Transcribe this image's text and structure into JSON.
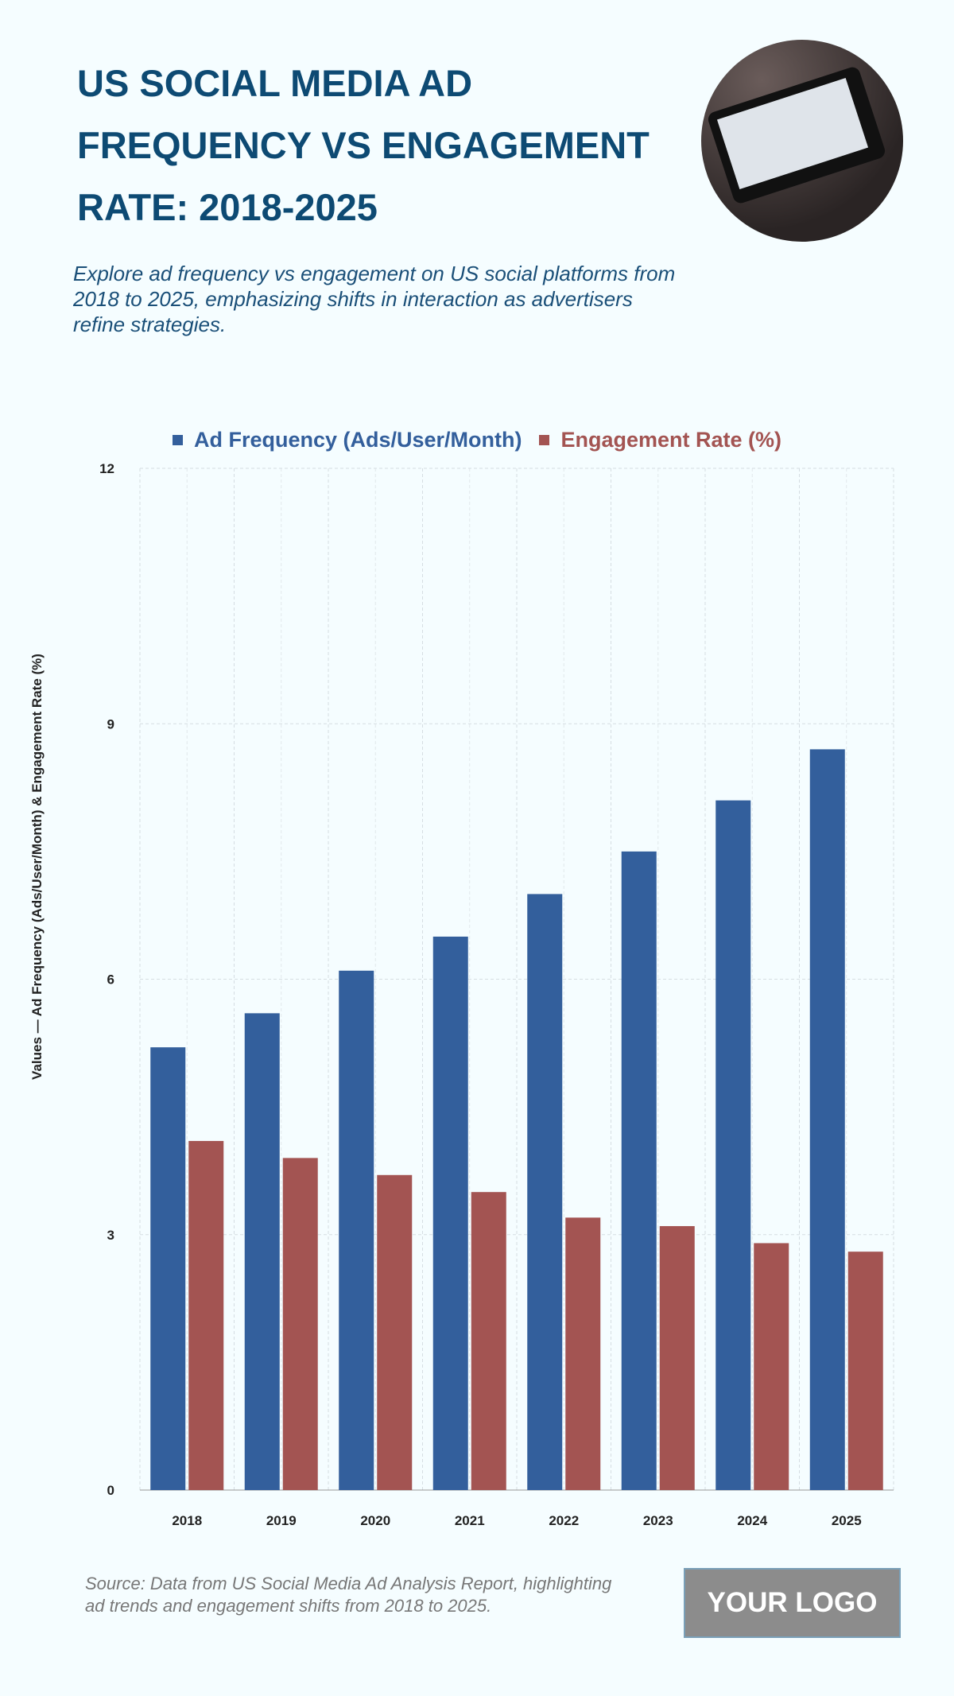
{
  "header": {
    "title": "US SOCIAL MEDIA AD FREQUENCY VS ENGAGEMENT RATE: 2018-2025",
    "subtitle": "Explore ad frequency vs engagement on US social platforms from 2018 to 2025, emphasizing shifts in interaction as advertisers refine strategies."
  },
  "footer": {
    "source": "Source: Data from US Social Media Ad Analysis Report, highlighting ad trends and engagement shifts from 2018 to 2025.",
    "logo": "YOUR LOGO"
  },
  "chart_data": {
    "type": "bar",
    "categories": [
      "2018",
      "2019",
      "2020",
      "2021",
      "2022",
      "2023",
      "2024",
      "2025"
    ],
    "series": [
      {
        "name": "Ad Frequency (Ads/User/Month)",
        "color": "#335f9c",
        "values": [
          5.2,
          5.6,
          6.1,
          6.5,
          7.0,
          7.5,
          8.1,
          8.7
        ]
      },
      {
        "name": "Engagement Rate (%)",
        "color": "#a35452",
        "values": [
          4.1,
          3.9,
          3.7,
          3.5,
          3.2,
          3.1,
          2.9,
          2.8
        ]
      }
    ],
    "ylabel": "Values — Ad Frequency (Ads/User/Month) & Engagement Rate (%)",
    "ylim": [
      0,
      12
    ],
    "yticks": [
      "0",
      "3",
      "6",
      "9",
      "12"
    ],
    "grid": true,
    "legend": "top"
  }
}
